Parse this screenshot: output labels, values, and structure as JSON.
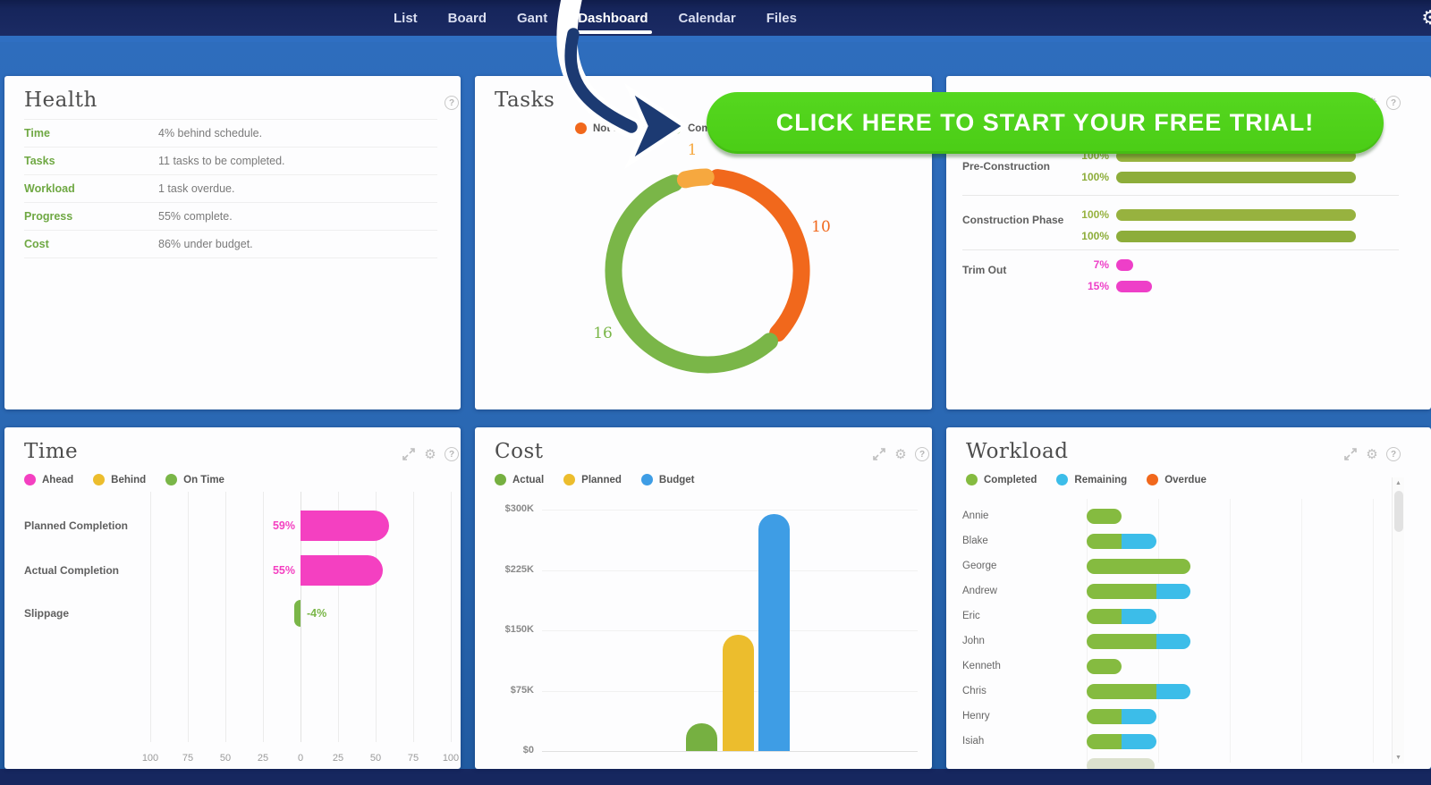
{
  "nav": {
    "tabs": [
      {
        "label": "List",
        "active": false
      },
      {
        "label": "Board",
        "active": false
      },
      {
        "label": "Gant",
        "active": false
      },
      {
        "label": "Dashboard",
        "active": true
      },
      {
        "label": "Calendar",
        "active": false
      },
      {
        "label": "Files",
        "active": false
      }
    ]
  },
  "cta": {
    "label": "CLICK HERE TO START YOUR FREE TRIAL!",
    "bg_color": "#50d31c"
  },
  "cards": {
    "health": {
      "title": "Health",
      "rows": [
        {
          "label": "Time",
          "value": "4% behind schedule."
        },
        {
          "label": "Tasks",
          "value": "11 tasks to be completed."
        },
        {
          "label": "Workload",
          "value": "1 task overdue."
        },
        {
          "label": "Progress",
          "value": "55% complete."
        },
        {
          "label": "Cost",
          "value": "86% under budget."
        }
      ]
    },
    "tasks": {
      "title": "Tasks"
    },
    "time": {
      "title": "Time"
    },
    "cost": {
      "title": "Cost"
    },
    "workload": {
      "title": "Workload"
    }
  },
  "icons": {
    "help": "?",
    "gear": "⚙",
    "scroll_up": "▲",
    "scroll_down": "▼"
  },
  "colors": {
    "green": "#7ab648",
    "olive_dark": "#97b23f",
    "olive_light": "#8dad3a",
    "pink": "#ee3fc8",
    "magenta": "#f440c1",
    "orange": "#f1681c",
    "amber": "#f6a83f",
    "yellow": "#ecbd2d",
    "blue": "#3e9de5",
    "cyan": "#3cbde9",
    "cta_green": "#50d31c",
    "navy": "#1c3a72"
  },
  "chart_data": [
    {
      "id": "tasks",
      "type": "donut",
      "title": "Tasks",
      "segments": [
        {
          "label": "Not Started",
          "value": 10,
          "color": "#f1681c"
        },
        {
          "label": "Completed",
          "value": 16,
          "color": "#7ab648"
        },
        {
          "label": "",
          "value": 1,
          "color": "#f6a83f"
        }
      ],
      "data_labels": [
        "10",
        "16",
        "1"
      ],
      "legend": [
        {
          "label": "Not Started",
          "color": "#f1681c"
        },
        {
          "label": "Completed",
          "color": "#7ab648"
        }
      ]
    },
    {
      "id": "time",
      "type": "bar-horizontal",
      "title": "Time",
      "legend": [
        {
          "label": "Ahead",
          "color": "#f440c1"
        },
        {
          "label": "Behind",
          "color": "#ecbd2d"
        },
        {
          "label": "On Time",
          "color": "#7ab648"
        }
      ],
      "categories": [
        "Planned Completion",
        "Actual Completion",
        "Slippage"
      ],
      "values": [
        59,
        55,
        -4
      ],
      "value_labels": [
        "59%",
        "55%",
        "-4%"
      ],
      "bar_colors": [
        "#f440c1",
        "#f440c1",
        "#7ab648"
      ],
      "x_ticks": [
        -100,
        -75,
        -50,
        -25,
        0,
        25,
        50,
        75,
        100
      ],
      "x_tick_labels": [
        "100",
        "75",
        "50",
        "25",
        "0",
        "25",
        "50",
        "75",
        "100"
      ],
      "xlim": [
        -100,
        100
      ],
      "grid": true
    },
    {
      "id": "cost",
      "type": "bar",
      "title": "Cost",
      "legend": [
        {
          "label": "Actual",
          "color": "#76b041"
        },
        {
          "label": "Planned",
          "color": "#ecbd2d"
        },
        {
          "label": "Budget",
          "color": "#3e9de5"
        }
      ],
      "series": [
        {
          "name": "Actual",
          "value": 35000,
          "color": "#76b041"
        },
        {
          "name": "Planned",
          "value": 145000,
          "color": "#ecbd2d"
        },
        {
          "name": "Budget",
          "value": 295000,
          "color": "#3e9de5"
        }
      ],
      "y_ticks": [
        0,
        75000,
        150000,
        225000,
        300000
      ],
      "y_tick_labels": [
        "$0",
        "$75K",
        "$150K",
        "$225K",
        "$300K"
      ],
      "ylim": [
        0,
        300000
      ],
      "grid": true
    },
    {
      "id": "workload",
      "type": "stacked-bar-horizontal",
      "title": "Workload",
      "legend": [
        {
          "label": "Completed",
          "color": "#85bb40"
        },
        {
          "label": "Remaining",
          "color": "#3cbde9"
        },
        {
          "label": "Overdue",
          "color": "#f1681c"
        }
      ],
      "categories": [
        "Annie",
        "Blake",
        "George",
        "Andrew",
        "Eric",
        "John",
        "Kenneth",
        "Chris",
        "Henry",
        "Isiah"
      ],
      "series": [
        {
          "name": "Completed",
          "color": "#85bb40",
          "values": [
            4,
            4,
            12,
            8,
            4,
            8,
            4,
            8,
            4,
            4
          ]
        },
        {
          "name": "Remaining",
          "color": "#3cbde9",
          "values": [
            0,
            4,
            0,
            4,
            4,
            4,
            0,
            4,
            4,
            4
          ]
        },
        {
          "name": "Overdue",
          "color": "#f1681c",
          "values": [
            0,
            0,
            0,
            0,
            0,
            0,
            0,
            0,
            0,
            0
          ]
        }
      ],
      "partial_row_visible": true,
      "grid": true
    },
    {
      "id": "phases",
      "type": "bar-horizontal",
      "title": "",
      "rows": [
        {
          "label": "Pre-Construction",
          "bars": [
            {
              "pct": 100,
              "label": "100%",
              "color": "#97b23f"
            },
            {
              "pct": 100,
              "label": "100%",
              "color": "#8dad3a"
            }
          ]
        },
        {
          "label": "Construction Phase",
          "bars": [
            {
              "pct": 100,
              "label": "100%",
              "color": "#97b23f"
            },
            {
              "pct": 100,
              "label": "100%",
              "color": "#8dad3a"
            }
          ]
        },
        {
          "label": "Trim Out",
          "bars": [
            {
              "pct": 7,
              "label": "7%",
              "color": "#ee3fc8"
            },
            {
              "pct": 15,
              "label": "15%",
              "color": "#ee3fc8"
            }
          ]
        }
      ],
      "xlim": [
        0,
        100
      ]
    }
  ]
}
